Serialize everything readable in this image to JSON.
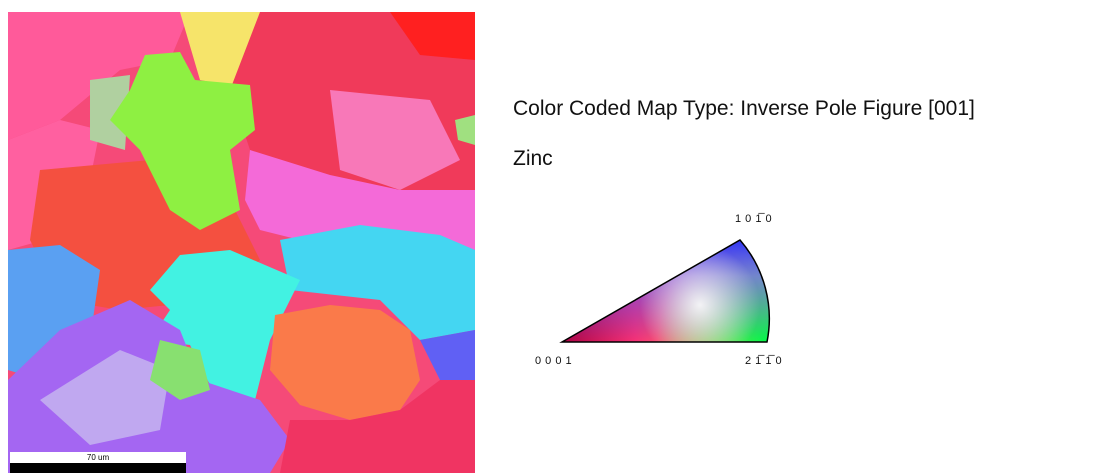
{
  "map": {
    "scale_bar_label": "70 um"
  },
  "legend": {
    "title": "Color Coded Map Type: Inverse Pole Figure [001]",
    "phase": "Zinc",
    "ipf": {
      "top_label": "1 0 1̅ 0",
      "left_label": "0 0 0 1",
      "right_label": "2 1̅ 1̅ 0"
    }
  }
}
